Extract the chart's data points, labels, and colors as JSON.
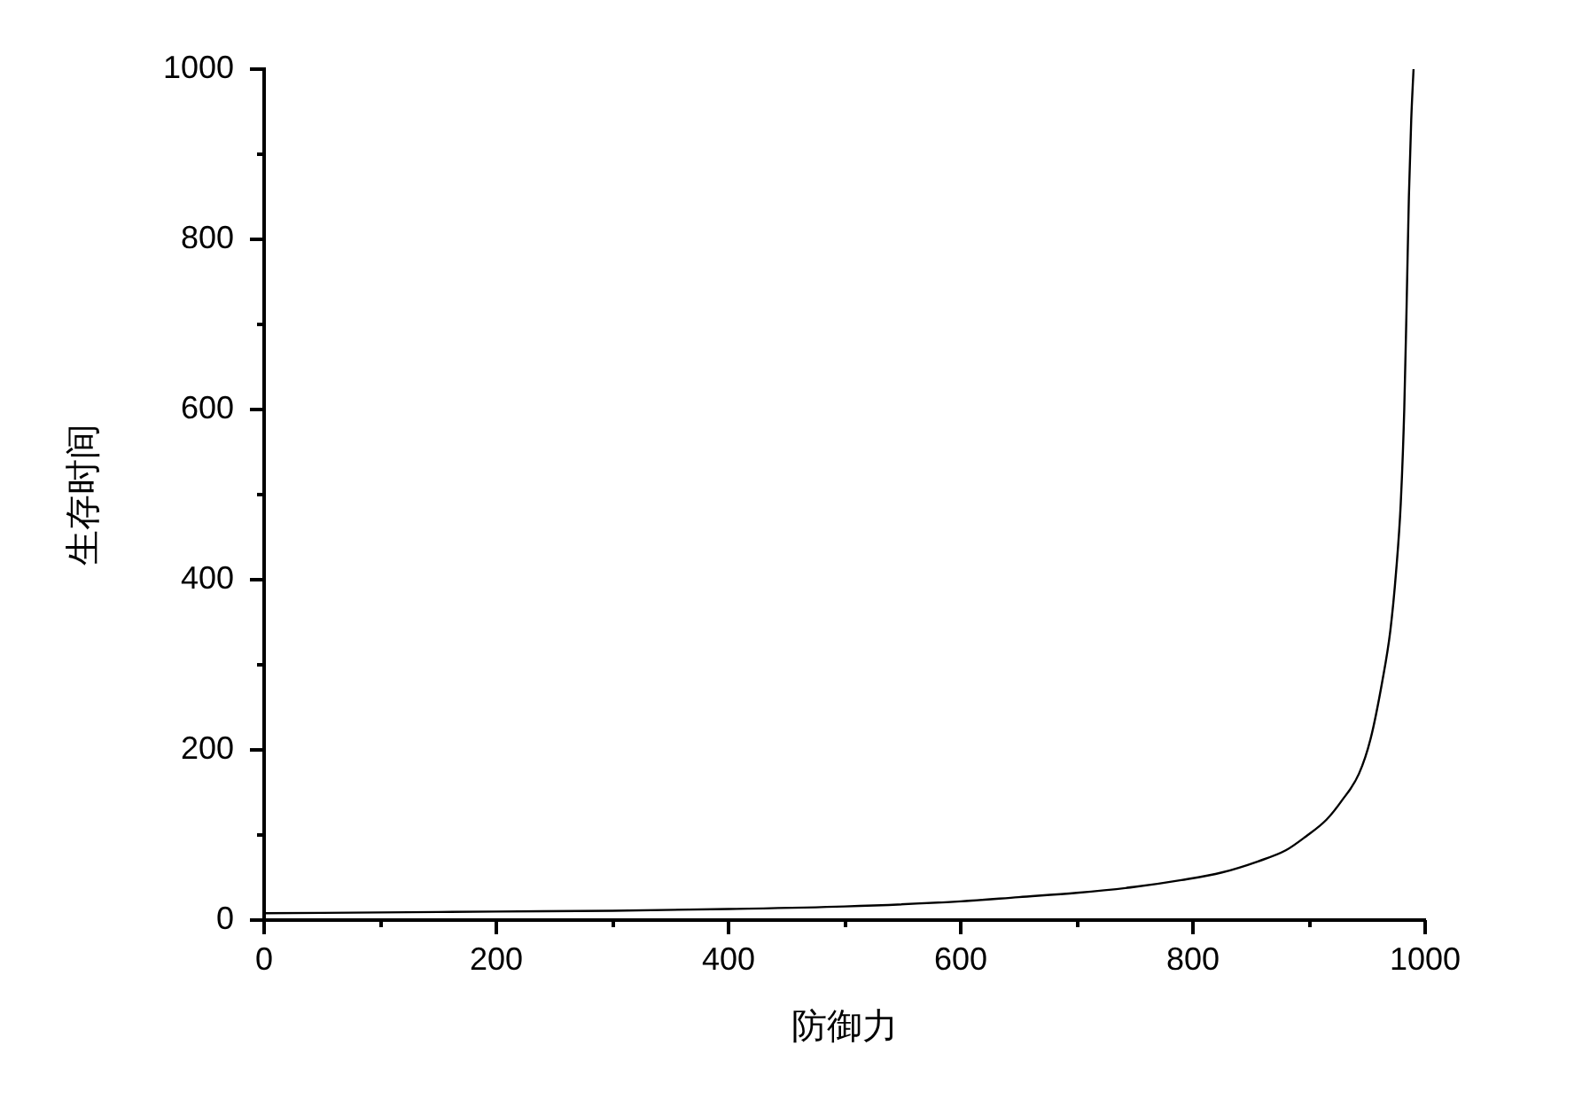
{
  "chart_data": {
    "type": "line",
    "xlabel": "防御力",
    "ylabel": "生存时间",
    "x": [
      0,
      100,
      200,
      300,
      400,
      500,
      600,
      650,
      700,
      750,
      790,
      825,
      856,
      880,
      897,
      915,
      928,
      943,
      953,
      963,
      970,
      975,
      979,
      982,
      984,
      986,
      988,
      990
    ],
    "values": [
      8,
      9,
      10,
      11,
      13,
      16,
      22,
      27,
      32,
      39,
      47,
      56,
      69,
      82,
      98,
      118,
      140,
      172,
      213,
      280,
      340,
      410,
      490,
      600,
      720,
      850,
      940,
      1000
    ],
    "color": "#000000",
    "xlim": [
      0,
      1000
    ],
    "ylim": [
      0,
      1000
    ],
    "xticks": [
      0,
      {
        "value": 100,
        "label": null
      },
      200,
      {
        "value": 300,
        "label": null
      },
      400,
      {
        "value": 500,
        "label": null
      },
      600,
      {
        "value": 700,
        "label": null
      },
      800,
      {
        "value": 900,
        "label": null
      },
      1000
    ],
    "yticks": [
      0,
      {
        "value": 100,
        "label": null
      },
      200,
      {
        "value": 300,
        "label": null
      },
      400,
      {
        "value": 500,
        "label": null
      },
      600,
      {
        "value": 700,
        "label": null
      },
      800,
      {
        "value": 900,
        "label": null
      },
      1000
    ],
    "grid": false,
    "legend": false,
    "marker": "none",
    "line_style": "solid"
  }
}
